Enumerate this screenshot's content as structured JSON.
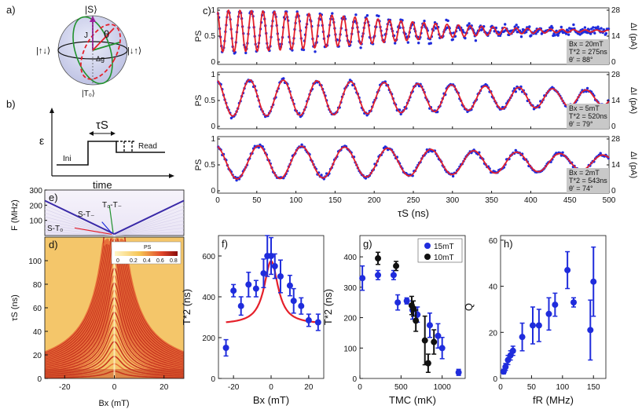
{
  "panel_labels": {
    "a": "a)",
    "b": "b)",
    "c": "c)",
    "d": "d)",
    "e": "e)",
    "f": "f)",
    "g": "g)",
    "h": "h)"
  },
  "bloch": {
    "top": "|S⟩",
    "bottom": "|T₀⟩",
    "left": "|↑↓⟩",
    "right": "|↓↑⟩",
    "theta": "θ",
    "J": "J",
    "dg": "Δg",
    "colors": {
      "red": "#e5202a",
      "green": "#21922e",
      "purple": "#a020a0",
      "sphere": "#c9cbe9"
    }
  },
  "pulse": {
    "tau": "τS",
    "epsilon": "ε",
    "ini": "Ini",
    "read": "Read",
    "time": "time"
  },
  "colors": {
    "blue": "#1f2cdc",
    "red": "#e5202a",
    "black": "#111111",
    "gray": "#c8c8c8"
  },
  "chart_data": [
    {
      "id": "c-top",
      "type": "scatter+line",
      "ylabel": "PS",
      "y2label": "ΔI (pA)",
      "xlim": [
        0,
        500
      ],
      "ylim": [
        0,
        1
      ],
      "yticks": [
        "0",
        "0.5",
        "1"
      ],
      "y2ticks": [
        "0",
        "14",
        "28"
      ],
      "params": {
        "B": "Bx = 20mT",
        "T2": "T*2 = 275ns",
        "theta": "θ' = 88°"
      },
      "fit": {
        "mean": 0.6,
        "amp": 0.4,
        "period_ns": 14.7,
        "t2_ns": 275
      }
    },
    {
      "id": "c-mid",
      "type": "scatter+line",
      "ylabel": "PS",
      "y2label": "ΔI (pA)",
      "xlim": [
        0,
        500
      ],
      "ylim": [
        0,
        1
      ],
      "yticks": [
        "0",
        "0.5",
        "1"
      ],
      "y2ticks": [
        "0",
        "14",
        "28"
      ],
      "params": {
        "B": "Bx = 5mT",
        "T2": "T*2 = 520ns",
        "theta": "θ' = 79°"
      },
      "fit": {
        "mean": 0.55,
        "amp": 0.35,
        "period_ns": 43,
        "t2_ns": 520
      }
    },
    {
      "id": "c-bot",
      "type": "scatter+line",
      "ylabel": "PS",
      "y2label": "ΔI (pA)",
      "xlabel": "τS (ns)",
      "xlim": [
        0,
        500
      ],
      "ylim": [
        0,
        1
      ],
      "xticks": [
        0,
        50,
        100,
        150,
        200,
        250,
        300,
        350,
        400,
        450,
        500
      ],
      "yticks": [
        "0",
        "0.5",
        "1"
      ],
      "y2ticks": [
        "0",
        "14",
        "28"
      ],
      "params": {
        "B": "Bx = 2mT",
        "T2": "T*2 = 543ns",
        "theta": "θ' = 74°"
      },
      "fit": {
        "mean": 0.55,
        "amp": 0.32,
        "period_ns": 55,
        "t2_ns": 543
      }
    },
    {
      "id": "e",
      "type": "heatmap",
      "ylabel": "F (MHz)",
      "ylim": [
        0,
        300
      ],
      "yticks": [
        100,
        200,
        300
      ],
      "labels": {
        "st_minus": "S-T₋",
        "t0_tminus": "T₀-T₋",
        "s_t0": "S-T₀"
      }
    },
    {
      "id": "d",
      "type": "heatmap",
      "xlabel": "Bx (mT)",
      "ylabel": "τS (ns)",
      "xlim": [
        -28,
        28
      ],
      "ylim": [
        0,
        120
      ],
      "xticks": [
        -20,
        0,
        20
      ],
      "yticks": [
        0,
        20,
        40,
        60,
        80,
        100
      ],
      "colorbar": {
        "label": "PS",
        "ticks": [
          "0",
          "0.2",
          "0.4",
          "0.6",
          "0.8"
        ]
      }
    },
    {
      "id": "f",
      "type": "scatter",
      "xlabel": "Bx (mT)",
      "ylabel": "T*2 (ns)",
      "xlim": [
        -28,
        28
      ],
      "ylim": [
        0,
        700
      ],
      "xticks": [
        -20,
        0,
        20
      ],
      "yticks": [
        0,
        200,
        400,
        600
      ],
      "points": [
        {
          "x": -24,
          "y": 150,
          "err": 40
        },
        {
          "x": -20,
          "y": 430,
          "err": 30
        },
        {
          "x": -16,
          "y": 355,
          "err": 45
        },
        {
          "x": -12,
          "y": 460,
          "err": 60
        },
        {
          "x": -8,
          "y": 440,
          "err": 40
        },
        {
          "x": -4,
          "y": 515,
          "err": 70
        },
        {
          "x": -2,
          "y": 600,
          "err": 100
        },
        {
          "x": 0,
          "y": 600,
          "err": 90
        },
        {
          "x": 2,
          "y": 550,
          "err": 60
        },
        {
          "x": 5,
          "y": 500,
          "err": 80
        },
        {
          "x": 10,
          "y": 455,
          "err": 50
        },
        {
          "x": 12,
          "y": 380,
          "err": 60
        },
        {
          "x": 16,
          "y": 355,
          "err": 40
        },
        {
          "x": 20,
          "y": 285,
          "err": 30
        },
        {
          "x": 25,
          "y": 275,
          "err": 40
        }
      ],
      "fit": {
        "base": 265,
        "peak": 310,
        "width": 4.5
      }
    },
    {
      "id": "g",
      "type": "scatter",
      "xlabel": "TMC (mK)",
      "ylabel": "T*2 (ns)",
      "xlim": [
        0,
        1280
      ],
      "ylim": [
        0,
        470
      ],
      "xticks": [
        0,
        500,
        1000
      ],
      "yticks": [
        0,
        100,
        200,
        300,
        400
      ],
      "legend": {
        "s15": "15mT",
        "s10": "10mT"
      },
      "series": [
        {
          "name": "15mT",
          "color": "blue",
          "points": [
            {
              "x": 30,
              "y": 330,
              "err": 40
            },
            {
              "x": 220,
              "y": 340,
              "err": 15
            },
            {
              "x": 410,
              "y": 340,
              "err": 15
            },
            {
              "x": 460,
              "y": 250,
              "err": 25
            },
            {
              "x": 570,
              "y": 255,
              "err": 10
            },
            {
              "x": 640,
              "y": 225,
              "err": 30
            },
            {
              "x": 700,
              "y": 210,
              "err": 25
            },
            {
              "x": 850,
              "y": 175,
              "err": 40
            },
            {
              "x": 950,
              "y": 140,
              "err": 40
            },
            {
              "x": 1000,
              "y": 100,
              "err": 35
            },
            {
              "x": 1200,
              "y": 20,
              "err": 10
            }
          ]
        },
        {
          "name": "10mT",
          "color": "black",
          "points": [
            {
              "x": 220,
              "y": 395,
              "err": 20
            },
            {
              "x": 440,
              "y": 370,
              "err": 15
            },
            {
              "x": 630,
              "y": 240,
              "err": 30
            },
            {
              "x": 650,
              "y": 230,
              "err": 25
            },
            {
              "x": 680,
              "y": 190,
              "err": 35
            },
            {
              "x": 790,
              "y": 125,
              "err": 80
            },
            {
              "x": 830,
              "y": 50,
              "err": 30
            },
            {
              "x": 900,
              "y": 120,
              "err": 40
            }
          ]
        }
      ]
    },
    {
      "id": "h",
      "type": "scatter",
      "xlabel": "fR (MHz)",
      "ylabel": "Q",
      "xlim": [
        0,
        170
      ],
      "ylim": [
        0,
        62
      ],
      "xticks": [
        0,
        50,
        100,
        150
      ],
      "yticks": [
        0,
        20,
        40,
        60
      ],
      "points": [
        {
          "x": 5,
          "y": 3,
          "err": 1
        },
        {
          "x": 8,
          "y": 5,
          "err": 1.5
        },
        {
          "x": 12,
          "y": 8,
          "err": 2
        },
        {
          "x": 16,
          "y": 10,
          "err": 2
        },
        {
          "x": 20,
          "y": 12,
          "err": 2
        },
        {
          "x": 35,
          "y": 18,
          "err": 6
        },
        {
          "x": 52,
          "y": 23,
          "err": 8
        },
        {
          "x": 62,
          "y": 23,
          "err": 7
        },
        {
          "x": 78,
          "y": 28,
          "err": 7
        },
        {
          "x": 88,
          "y": 32,
          "err": 5
        },
        {
          "x": 108,
          "y": 47,
          "err": 8
        },
        {
          "x": 118,
          "y": 33,
          "err": 2
        },
        {
          "x": 145,
          "y": 21,
          "err": 13
        },
        {
          "x": 150,
          "y": 42,
          "err": 15
        }
      ]
    }
  ]
}
